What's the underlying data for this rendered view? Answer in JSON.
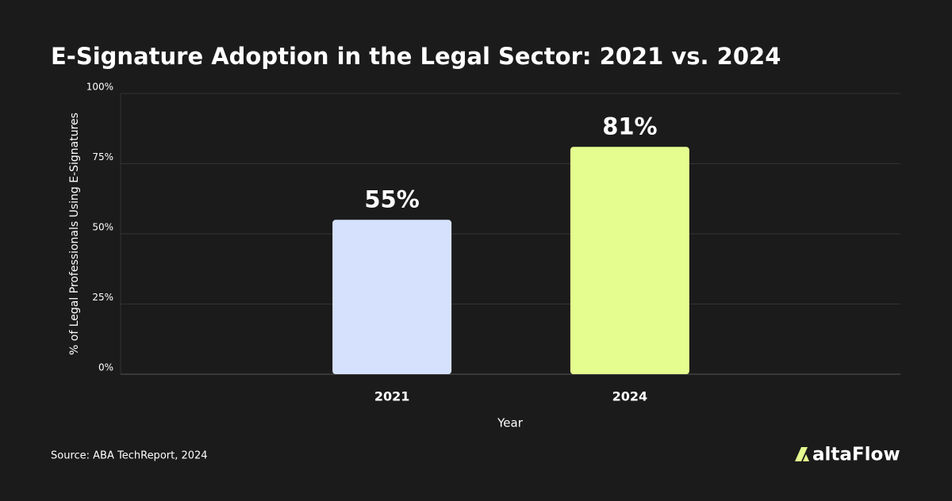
{
  "chart_data": {
    "type": "bar",
    "title": "E-Signature Adoption in the Legal Sector: 2021 vs. 2024",
    "categories": [
      "2021",
      "2024"
    ],
    "values": [
      55,
      81
    ],
    "value_labels": [
      "55%",
      "81%"
    ],
    "colors": [
      "#d6e2fd",
      "#e5fd8f"
    ],
    "x_label": "Year",
    "y_label": "% of Legal Professionals Using E-Signatures",
    "ylim": [
      0,
      100
    ],
    "yticks": [
      {
        "value": 0,
        "label": "0%"
      },
      {
        "value": 25,
        "label": "25%"
      },
      {
        "value": 50,
        "label": "50%"
      },
      {
        "value": 75,
        "label": "75%"
      },
      {
        "value": 100,
        "label": "100%"
      }
    ],
    "grid": true,
    "source": "Source: ABA TechReport, 2024",
    "brand": "altaFlow"
  }
}
